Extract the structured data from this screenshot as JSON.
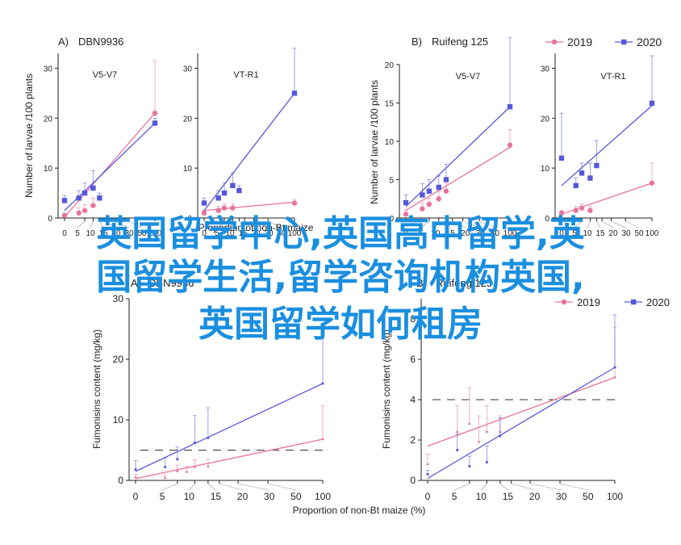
{
  "colors": {
    "s2019": "#e8739a",
    "s2020": "#5558d8",
    "axis": "#222222",
    "overlay": "#1a8fe0"
  },
  "overlay": {
    "line1": "英国留学中心,英国高中留学,英",
    "line2": "国留学生活,留学咨询机构英国,",
    "line3": "英国留学如何租房"
  },
  "chart_data": [
    {
      "type": "scatter",
      "panel_label": "A)",
      "title": "DBN9936",
      "subtitle": "V5-V7",
      "ylabel": "Number of larvae /100 plants",
      "xlabel": "",
      "xticks": [
        0,
        5,
        10,
        15,
        20,
        30,
        50,
        100
      ],
      "yticks": [
        0,
        10,
        20,
        30
      ],
      "ylim": [
        0,
        33
      ],
      "series": [
        {
          "name": "2019",
          "x": [
            0,
            2.5,
            5,
            10,
            100
          ],
          "y": [
            0.5,
            1,
            1.5,
            2.5,
            21
          ],
          "err": [
            0.5,
            1,
            1.2,
            1.5,
            10.5
          ],
          "fit": [
            [
              0,
              0.2
            ],
            [
              100,
              21
            ]
          ]
        },
        {
          "name": "2020",
          "x": [
            0,
            2.5,
            5,
            10,
            15,
            100
          ],
          "y": [
            3.5,
            4,
            5,
            6,
            4,
            19
          ],
          "err": [
            1,
            1.5,
            2,
            3.5,
            1,
            1
          ],
          "fit": [
            [
              0,
              1.5
            ],
            [
              100,
              19
            ]
          ]
        }
      ]
    },
    {
      "type": "scatter",
      "panel_label": "",
      "title": "",
      "subtitle": "VT-R1",
      "ylabel": "",
      "xlabel": "Proportion of non-Bt maize",
      "xticks": [
        0,
        5,
        10,
        15,
        20,
        30,
        50,
        100
      ],
      "yticks": [
        0,
        10,
        20,
        30
      ],
      "ylim": [
        0,
        33
      ],
      "series": [
        {
          "name": "2019",
          "x": [
            0,
            2.5,
            5,
            10,
            100
          ],
          "y": [
            1,
            1.5,
            2,
            2,
            3
          ],
          "err": [
            0.5,
            0.8,
            0.8,
            0.8,
            0.7
          ],
          "fit": [
            [
              0,
              1.5
            ],
            [
              100,
              3.2
            ]
          ]
        },
        {
          "name": "2020",
          "x": [
            0,
            2.5,
            5,
            10,
            15,
            100
          ],
          "y": [
            3,
            4,
            5,
            6.5,
            5.5,
            25
          ],
          "err": [
            1,
            1.5,
            2,
            2.5,
            1,
            9
          ],
          "fit": [
            [
              0,
              1.5
            ],
            [
              100,
              25
            ]
          ]
        }
      ]
    },
    {
      "type": "scatter",
      "panel_label": "B)",
      "title": "Ruifeng 125",
      "subtitle": "V5-V7",
      "ylabel": "Number of larvae /100 plants",
      "xlabel": "",
      "xticks": [
        0,
        5,
        10,
        15,
        20,
        30,
        50,
        100
      ],
      "yticks": [
        0,
        5,
        10,
        15,
        20
      ],
      "ylim": [
        0,
        20
      ],
      "series": [
        {
          "name": "2019",
          "x": [
            0,
            2.5,
            5,
            10,
            15,
            100
          ],
          "y": [
            0.5,
            1.2,
            1.8,
            2.5,
            3.5,
            9.5
          ],
          "err": [
            0.5,
            0.7,
            0.8,
            1,
            1,
            2
          ],
          "fit": [
            [
              0,
              1.0
            ],
            [
              100,
              9.2
            ]
          ]
        },
        {
          "name": "2020",
          "x": [
            0,
            2.5,
            5,
            10,
            15,
            100
          ],
          "y": [
            2,
            3,
            3.5,
            4,
            5,
            14.5
          ],
          "err": [
            1,
            1.5,
            1.5,
            1.5,
            2,
            9
          ],
          "fit": [
            [
              0,
              1.5
            ],
            [
              100,
              14.5
            ]
          ]
        }
      ]
    },
    {
      "type": "scatter",
      "panel_label": "",
      "title": "",
      "subtitle": "VT-R1",
      "ylabel": "",
      "xlabel": "",
      "xticks": [
        0,
        5,
        10,
        15,
        20,
        30,
        50,
        100
      ],
      "yticks": [
        0,
        10,
        20,
        30
      ],
      "ylim": [
        0,
        33
      ],
      "series": [
        {
          "name": "2019",
          "x": [
            0,
            2.5,
            5,
            10,
            100
          ],
          "y": [
            1,
            1.5,
            2,
            1.5,
            7
          ],
          "err": [
            0.5,
            0.8,
            0.8,
            0.8,
            4
          ],
          "fit": [
            [
              0,
              0.8
            ],
            [
              100,
              7
            ]
          ]
        },
        {
          "name": "2020",
          "x": [
            0,
            2.5,
            5,
            10,
            15,
            100
          ],
          "y": [
            12,
            6.5,
            9,
            8,
            10.5,
            23
          ],
          "err": [
            9,
            1.5,
            2,
            3,
            5,
            9.5
          ],
          "fit": [
            [
              0,
              6.5
            ],
            [
              100,
              22.5
            ]
          ]
        }
      ]
    },
    {
      "type": "scatter",
      "panel_label": "A)",
      "title": "DBN9936",
      "subtitle": "",
      "ylabel": "Fumonisins content (mg/kg)",
      "xlabel": "Proportion of non-Bt maize (%)",
      "xticks": [
        0,
        5,
        10,
        15,
        20,
        30,
        50,
        100
      ],
      "yticks": [
        0,
        10,
        20,
        30
      ],
      "ylim": [
        0,
        30
      ],
      "threshold": 5,
      "series": [
        {
          "name": "2019",
          "x": [
            0,
            2.5,
            5,
            7.5,
            10,
            15,
            100
          ],
          "y": [
            0.5,
            0.4,
            1.5,
            1.4,
            2.2,
            2.3,
            6.8
          ],
          "err": [
            0.5,
            0.5,
            1,
            0.9,
            1.2,
            1.2,
            5.5
          ],
          "fit": [
            [
              0,
              0.3
            ],
            [
              100,
              6.8
            ]
          ]
        },
        {
          "name": "2020",
          "x": [
            0,
            2.5,
            5,
            10,
            15,
            100
          ],
          "y": [
            1.8,
            2.2,
            3.5,
            6.2,
            7,
            16
          ],
          "err": [
            1.5,
            1.5,
            2,
            4.5,
            5,
            9
          ],
          "fit": [
            [
              0,
              1.5
            ],
            [
              100,
              16
            ]
          ]
        }
      ]
    },
    {
      "type": "scatter",
      "panel_label": "B)",
      "title": "Ruifeng 125",
      "subtitle": "",
      "ylabel": "Fumonisins content (mg/kg)",
      "xlabel": "Proportion of non-Bt maize (%)",
      "xticks": [
        0,
        5,
        10,
        15,
        20,
        30,
        50,
        100
      ],
      "yticks": [
        0,
        2,
        4,
        6,
        8
      ],
      "ylim": [
        0,
        9
      ],
      "threshold": 4,
      "series": [
        {
          "name": "2019",
          "x": [
            0,
            2.5,
            5,
            7.5,
            10,
            15,
            100
          ],
          "y": [
            0.8,
            2.4,
            2.8,
            1.9,
            2.4,
            2.4,
            5.1
          ],
          "err": [
            0.5,
            1.3,
            1.8,
            1.3,
            1.3,
            0.8,
            2.5
          ],
          "fit": [
            [
              0,
              1.7
            ],
            [
              100,
              5.1
            ]
          ]
        },
        {
          "name": "2020",
          "x": [
            0,
            2.5,
            5,
            10,
            15,
            100
          ],
          "y": [
            0.3,
            1.5,
            0.7,
            0.9,
            2.2,
            5.6
          ],
          "err": [
            0.2,
            0.8,
            0.5,
            0.8,
            0.9,
            2.6
          ],
          "fit": [
            [
              0,
              0.1
            ],
            [
              100,
              5.6
            ]
          ]
        }
      ]
    }
  ],
  "legend_top": {
    "items": [
      "2019",
      "2020"
    ],
    "placement": "top-right"
  },
  "legend_bottom": {
    "items": [
      "2019",
      "2020"
    ],
    "placement": "top-right"
  }
}
